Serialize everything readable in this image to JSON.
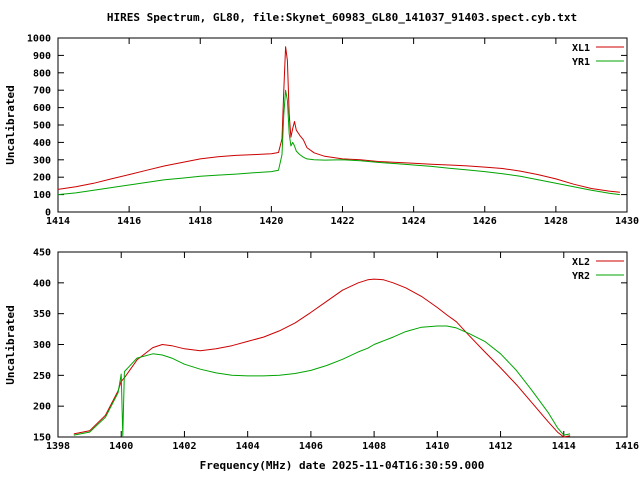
{
  "title": "HIRES Spectrum, GL80, file:Skynet_60983_GL80_141037_91403.spect.cyb.txt",
  "colors": {
    "background": "#ffffff",
    "axis": "#000000",
    "red_series": "#cc0000",
    "green_series": "#00a400"
  },
  "chart_data": [
    {
      "type": "line",
      "ylabel": "Uncalibrated",
      "xlim": [
        1414,
        1430
      ],
      "ylim": [
        0,
        1000
      ],
      "xticks": [
        1414,
        1416,
        1418,
        1420,
        1422,
        1424,
        1426,
        1428,
        1430
      ],
      "yticks": [
        0,
        100,
        200,
        300,
        400,
        500,
        600,
        700,
        800,
        900,
        1000
      ],
      "legend_position": "top-right",
      "grid": false,
      "x": [
        1414.0,
        1414.5,
        1415.0,
        1415.5,
        1416.0,
        1416.5,
        1417.0,
        1417.5,
        1418.0,
        1418.5,
        1419.0,
        1419.5,
        1420.0,
        1420.2,
        1420.3,
        1420.35,
        1420.4,
        1420.45,
        1420.5,
        1420.55,
        1420.6,
        1420.65,
        1420.7,
        1420.8,
        1420.9,
        1421.0,
        1421.2,
        1421.5,
        1422.0,
        1422.5,
        1423.0,
        1423.5,
        1424.0,
        1424.5,
        1425.0,
        1425.5,
        1426.0,
        1426.5,
        1427.0,
        1427.5,
        1428.0,
        1428.5,
        1429.0,
        1429.5,
        1429.8
      ],
      "series": [
        {
          "name": "XL1",
          "color": "#cc0000",
          "y": [
            130,
            145,
            165,
            190,
            215,
            240,
            265,
            285,
            305,
            318,
            325,
            330,
            335,
            342,
            420,
            700,
            950,
            870,
            560,
            430,
            480,
            520,
            470,
            440,
            415,
            370,
            340,
            320,
            305,
            300,
            290,
            285,
            280,
            275,
            270,
            265,
            258,
            250,
            235,
            215,
            190,
            160,
            135,
            120,
            113
          ]
        },
        {
          "name": "YR1",
          "color": "#00a400",
          "y": [
            100,
            110,
            125,
            140,
            155,
            170,
            185,
            195,
            205,
            212,
            218,
            225,
            232,
            240,
            330,
            560,
            700,
            640,
            450,
            380,
            400,
            380,
            350,
            330,
            315,
            305,
            300,
            298,
            300,
            295,
            285,
            278,
            270,
            262,
            252,
            242,
            232,
            220,
            205,
            185,
            165,
            145,
            125,
            108,
            100
          ]
        }
      ]
    },
    {
      "type": "line",
      "xlabel": "Frequency(MHz) date 2025-11-04T16:30:59.000",
      "ylabel": "Uncalibrated",
      "xlim": [
        1398,
        1416
      ],
      "ylim": [
        150,
        450
      ],
      "xticks": [
        1398,
        1400,
        1402,
        1404,
        1406,
        1408,
        1410,
        1412,
        1414,
        1416
      ],
      "yticks": [
        150,
        200,
        250,
        300,
        350,
        400,
        450
      ],
      "legend_position": "top-right",
      "grid": false,
      "x": [
        1398.5,
        1399.0,
        1399.5,
        1399.9,
        1400.0,
        1400.05,
        1400.1,
        1400.5,
        1401.0,
        1401.3,
        1401.6,
        1402.0,
        1402.5,
        1403.0,
        1403.5,
        1404.0,
        1404.5,
        1405.0,
        1405.5,
        1406.0,
        1406.5,
        1407.0,
        1407.5,
        1407.8,
        1408.0,
        1408.3,
        1408.6,
        1409.0,
        1409.5,
        1410.0,
        1410.3,
        1410.6,
        1411.0,
        1411.5,
        1412.0,
        1412.5,
        1413.0,
        1413.5,
        1413.8,
        1414.0,
        1414.2
      ],
      "series": [
        {
          "name": "XL2",
          "color": "#cc0000",
          "y": [
            155,
            160,
            185,
            225,
            240,
            243,
            246,
            275,
            295,
            300,
            298,
            293,
            290,
            293,
            298,
            305,
            312,
            322,
            335,
            352,
            370,
            388,
            400,
            405,
            406,
            405,
            400,
            392,
            378,
            360,
            348,
            337,
            315,
            288,
            262,
            235,
            205,
            175,
            158,
            150,
            152
          ]
        },
        {
          "name": "YR2",
          "color": "#00a400",
          "y": [
            153,
            158,
            182,
            222,
            252,
            152,
            256,
            278,
            285,
            283,
            278,
            268,
            260,
            254,
            250,
            249,
            249,
            250,
            253,
            258,
            266,
            276,
            288,
            294,
            300,
            306,
            312,
            321,
            328,
            330,
            330,
            327,
            318,
            305,
            285,
            258,
            225,
            190,
            165,
            153,
            155
          ]
        }
      ]
    }
  ]
}
